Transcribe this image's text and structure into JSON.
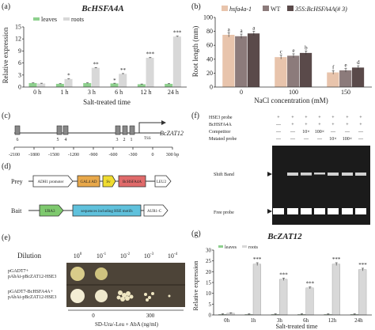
{
  "colors": {
    "leaves": "#8ed08e",
    "roots": "#d8d8d8",
    "mutant": "#e8c4ac",
    "wt": "#8c7b7b",
    "ox": "#5a4a4a",
    "uras": "#7ec96e",
    "gal": "#e8a84a",
    "fusion_red": "#e06a6a",
    "hse": "#5fc1dc",
    "box": "#888888",
    "gel": "#1b1b1b"
  },
  "panel_a": {
    "label": "(a)",
    "chart_data": {
      "type": "bar",
      "title": "BcHSFA4A",
      "xlabel": "Salt-treated time",
      "ylabel": "Relative expression",
      "categories": [
        "0 h",
        "1 h",
        "3 h",
        "6 h",
        "12 h",
        "24 h"
      ],
      "series": [
        {
          "name": "leaves",
          "values": [
            1.0,
            0.8,
            1.0,
            0.9,
            0.7,
            0.8
          ]
        },
        {
          "name": "roots",
          "values": [
            0.9,
            2.0,
            4.8,
            3.3,
            7.3,
            12.6
          ]
        }
      ],
      "annotations": [
        "",
        "*",
        "**",
        "**",
        "***",
        "***"
      ],
      "marks": [
        "",
        "",
        "",
        "*",
        "",
        ""
      ],
      "ylim": [
        0,
        15
      ],
      "yticks": [
        "0",
        "3",
        "6",
        "9",
        "12",
        "15"
      ]
    }
  },
  "panel_b": {
    "label": "(b)",
    "chart_data": {
      "type": "bar",
      "xlabel": "NaCl concentration (mM)",
      "ylabel": "Root length (mm)",
      "categories": [
        "0",
        "100",
        "150"
      ],
      "series": [
        {
          "name": "hsfa4a-1",
          "values": [
            75,
            43,
            21
          ]
        },
        {
          "name": "WT",
          "values": [
            73,
            45,
            24
          ]
        },
        {
          "name": "35S:BcHSFA4A(# 3)",
          "values": [
            77,
            49,
            28
          ]
        }
      ],
      "letters": [
        [
          "a",
          "a",
          "a"
        ],
        [
          "c",
          "e",
          "b"
        ],
        [
          "f",
          "e",
          "d"
        ]
      ],
      "ylim": [
        0,
        100
      ],
      "yticks": [
        "0",
        "20",
        "40",
        "60",
        "80",
        "100"
      ]
    }
  },
  "panel_c": {
    "label": "(c)",
    "tss": "TSS",
    "gene": "BcZAT12",
    "boxes": [
      "6",
      "5",
      "4",
      "3",
      "2",
      "1"
    ],
    "axis": [
      "-2100",
      "-1800",
      "-1500",
      "-1200",
      "-900",
      "-600",
      "-300",
      "0",
      "300 bp"
    ]
  },
  "panel_d": {
    "label": "(d)",
    "prey": "Prey",
    "bait": "Bait",
    "adh1": "ADH1 promoter",
    "gal": "GAL4 AD",
    "sv40": "Sv",
    "hsf": "BcHSFA4A",
    "leu2": "LEU2",
    "uras": "URA3",
    "hse_seq": "sequences including HSE motifs",
    "aur": "AUR1-C"
  },
  "panel_e": {
    "label": "(e)",
    "dilution": "Dilution",
    "exps": [
      "10",
      "10",
      "10",
      "10",
      "10"
    ],
    "pow": [
      "0",
      "-1",
      "-2",
      "-3",
      "-4"
    ],
    "row1": [
      "pGADT7+",
      "pAbAi-pBcZAT12-HSE3"
    ],
    "row2": [
      "pGADT7-BcHSFA4A+",
      "pAbAi-pBcZAT12-HSE3"
    ],
    "conc": [
      "0",
      "300"
    ],
    "xlabel": "SD-Ura/-Leu + AbA (ng/ml)"
  },
  "panel_f": {
    "label": "(f)",
    "rows": [
      "HSE3 probe",
      "BcHSFA4A",
      "Competitor",
      "Mutated probe"
    ],
    "row1": [
      "+",
      "+",
      "+",
      "+",
      "+",
      "+",
      "+"
    ],
    "row2": [
      "—",
      "+",
      "+",
      "+",
      "+",
      "+",
      "+"
    ],
    "row3": [
      "—",
      "—",
      "10×",
      "100×",
      "—",
      "—",
      "—"
    ],
    "row4": [
      "—",
      "—",
      "—",
      "—",
      "10×",
      "100×",
      "—"
    ],
    "shift": "Shift Band",
    "free": "Free probe"
  },
  "panel_g": {
    "label": "(g)",
    "chart_data": {
      "type": "bar",
      "title": "BcZAT12",
      "xlabel": "Salt-treated time",
      "ylabel": "Relative expression",
      "categories": [
        "0h",
        "1h",
        "3h",
        "6h",
        "12h",
        "24h"
      ],
      "series": [
        {
          "name": "leaves",
          "values": [
            0.3,
            0.3,
            0.3,
            0.3,
            0.3,
            0.3
          ]
        },
        {
          "name": "roots",
          "values": [
            0.8,
            23.5,
            16.5,
            12.5,
            23.5,
            21.0
          ]
        }
      ],
      "annotations": [
        "",
        "***",
        "***",
        "***",
        "***",
        "***"
      ],
      "ylim": [
        0,
        30
      ],
      "yticks": [
        "0",
        "5",
        "10",
        "15",
        "20",
        "25",
        "30"
      ]
    }
  }
}
